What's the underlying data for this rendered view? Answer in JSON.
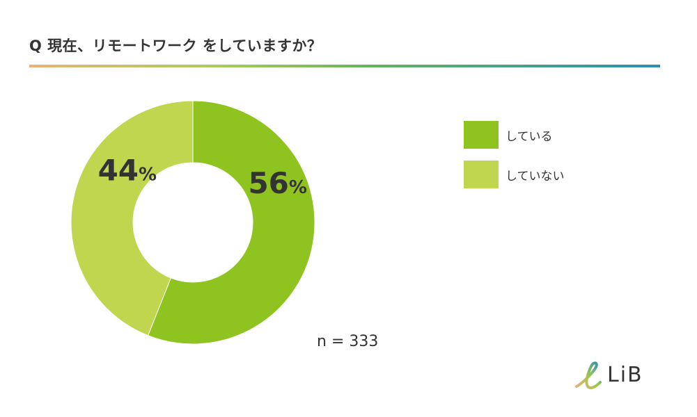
{
  "header": {
    "title": "Q 現在、リモートワーク をしていますか？"
  },
  "colors": {
    "doing": "#8fc31f",
    "not_doing": "#c1d64f",
    "text": "#333333"
  },
  "chart_data": {
    "type": "pie",
    "donut": true,
    "title": "Q 現在、リモートワーク をしていますか？",
    "categories": [
      "している",
      "していない"
    ],
    "values": [
      56,
      44
    ],
    "value_labels": [
      "56",
      "44"
    ],
    "unit": "%",
    "colors": [
      "#8fc31f",
      "#c1d64f"
    ],
    "legend_position": "right",
    "sample_size": "n = 333"
  },
  "legend": {
    "items": [
      {
        "label": "している",
        "color": "#8fc31f"
      },
      {
        "label": "していない",
        "color": "#c1d64f"
      }
    ]
  },
  "footer": {
    "sample_size": "n = 333",
    "brand": "LiB"
  }
}
